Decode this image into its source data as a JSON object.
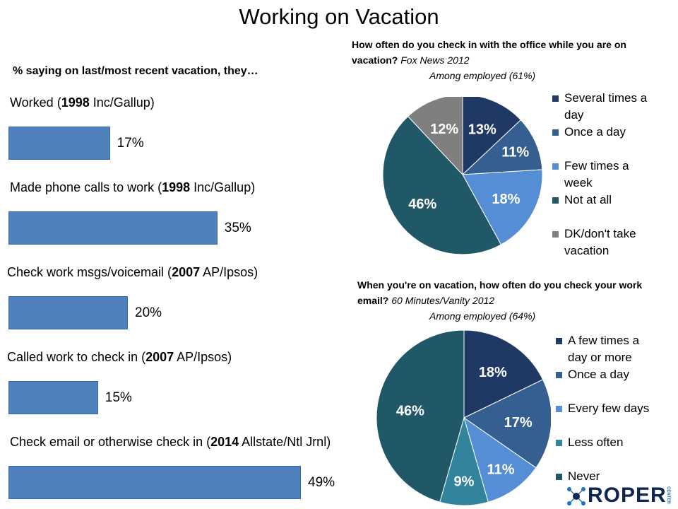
{
  "title": "Working on Vacation",
  "bar_section": {
    "subtitle": "% saying on last/most recent vacation, they…"
  },
  "chart_data": [
    {
      "type": "bar",
      "orientation": "horizontal",
      "title": "% saying on last/most recent vacation, they…",
      "categories": [
        "Worked (1998 Inc/Gallup)",
        "Made phone calls to work (1998 Inc/Gallup)",
        "Check work msgs/voicemail (2007 AP/Ipsos)",
        "Called work to check in (2007 AP/Ipsos)",
        "Check email or otherwise check in (2014 Allstate/Ntl Jrnl)"
      ],
      "values": [
        17,
        35,
        20,
        15,
        49
      ],
      "value_labels": [
        "17%",
        "35%",
        "20%",
        "15%",
        "49%"
      ],
      "label_parts": [
        {
          "pre": "Worked (",
          "year": "1998",
          "post": " Inc/Gallup)"
        },
        {
          "pre": "Made phone calls to work (",
          "year": "1998",
          "post": " Inc/Gallup)"
        },
        {
          "pre": "Check work msgs/voicemail (",
          "year": "2007",
          "post": " AP/Ipsos)"
        },
        {
          "pre": "Called work to check in (",
          "year": "2007",
          "post": " AP/Ipsos)"
        },
        {
          "pre": "Check email or otherwise check in (",
          "year": "2014",
          "post": " Allstate/Ntl Jrnl)"
        }
      ],
      "xlim": [
        0,
        55
      ],
      "grid": false,
      "color": "#4f81bd"
    },
    {
      "type": "pie",
      "title_bold": "How often do you check in with the office while you are on vacation?",
      "title_source": "Fox News 2012",
      "subtitle": "Among employed (61%)",
      "categories": [
        "Several times a day",
        "Once a day",
        "Few times a week",
        "Not at all",
        "DK/don't take vacation"
      ],
      "values": [
        13,
        11,
        18,
        46,
        12
      ],
      "value_labels": [
        "13%",
        "11%",
        "18%",
        "46%",
        "12%"
      ],
      "colors": [
        "#1f3864",
        "#365f91",
        "#558ed5",
        "#215868",
        "#7f7f7f"
      ],
      "legend_lines": [
        [
          "Several times a",
          "day"
        ],
        [
          "Once a day"
        ],
        [
          "Few times a",
          "week"
        ],
        [
          "Not at all"
        ],
        [
          "DK/don't take",
          "vacation"
        ]
      ],
      "legend": "right"
    },
    {
      "type": "pie",
      "title_bold": "When you're on vacation, how often do you check your work email?",
      "title_source": "60 Minutes/Vanity 2012",
      "subtitle": "Among employed (64%)",
      "categories": [
        "A few times a day or more",
        "Once a day",
        "Every few days",
        "Less often",
        "Never"
      ],
      "values": [
        18,
        17,
        11,
        9,
        46
      ],
      "value_labels": [
        "18%",
        "17%",
        "11%",
        "9%",
        "46%"
      ],
      "colors": [
        "#1f3864",
        "#365f91",
        "#558ed5",
        "#31849b",
        "#215868"
      ],
      "legend_lines": [
        [
          "A few times a",
          "day or more"
        ],
        [
          "Once a day"
        ],
        [
          "Every few days"
        ],
        [
          "Less often"
        ],
        [
          "Never"
        ]
      ],
      "legend": "right"
    }
  ],
  "logo": {
    "word": "ROPER",
    "small": "CENTER"
  }
}
